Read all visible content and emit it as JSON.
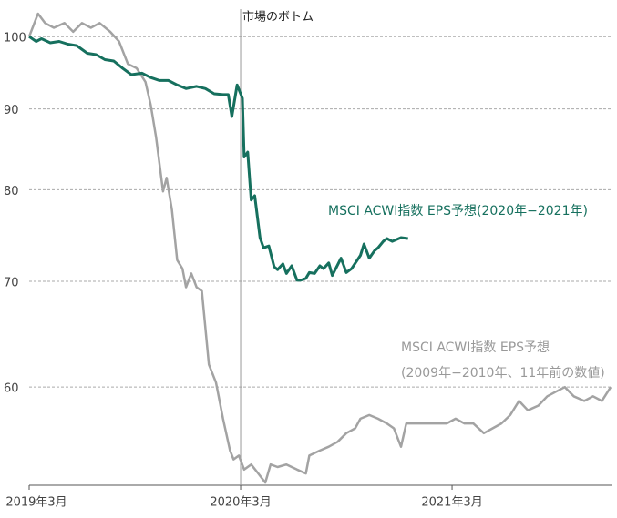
{
  "chart_data": {
    "type": "line",
    "log_y": true,
    "grid": true,
    "xlim": [
      0,
      33.1
    ],
    "xticks": [
      {
        "value": 0,
        "label": "2019年3月"
      },
      {
        "value": 12,
        "label": "2020年3月"
      },
      {
        "value": 24,
        "label": "2021年3月"
      }
    ],
    "ylim": [
      52,
      103.4
    ],
    "yticks": [
      100,
      90,
      80,
      70,
      60
    ],
    "annotation": {
      "x": 12,
      "label": "市場のボトム"
    },
    "series": [
      {
        "name": "MSCI ACWI指数 EPS予想",
        "note": "(2009年−2010年、11年前の数値)",
        "color": "#a3a3a3",
        "x": [
          0,
          0.5,
          0.9,
          1.4,
          2.0,
          2.5,
          3.0,
          3.5,
          4.0,
          4.6,
          5.1,
          5.6,
          6.1,
          6.6,
          6.9,
          7.2,
          7.6,
          7.8,
          8.1,
          8.4,
          8.7,
          8.9,
          9.2,
          9.5,
          9.8,
          10.2,
          10.6,
          11.0,
          11.4,
          11.6,
          11.9,
          12.2,
          12.6,
          13.0,
          13.4,
          13.7,
          14.1,
          14.6,
          15.2,
          15.7,
          15.9,
          16.5,
          17.0,
          17.5,
          18.0,
          18.5,
          18.8,
          19.3,
          19.8,
          20.3,
          20.7,
          21.1,
          21.4,
          21.9,
          22.4,
          23.2,
          23.7,
          24.2,
          24.7,
          25.2,
          25.8,
          26.3,
          26.8,
          27.3,
          27.8,
          28.3,
          28.9,
          29.4,
          29.9,
          30.4,
          30.9,
          31.5,
          32.0,
          32.5,
          33.0
        ],
        "values": [
          100,
          103.4,
          102.0,
          101.3,
          102.0,
          100.7,
          102.0,
          101.3,
          102.0,
          100.7,
          99.3,
          96.1,
          95.5,
          93.6,
          90.5,
          86.4,
          79.8,
          81.4,
          77.7,
          72.2,
          71.3,
          69.4,
          70.8,
          69.4,
          69.0,
          62.0,
          60.4,
          57.3,
          54.7,
          54.0,
          54.3,
          53.2,
          53.6,
          52.9,
          52.2,
          53.6,
          53.4,
          53.6,
          53.2,
          52.9,
          54.3,
          54.7,
          55.0,
          55.4,
          56.1,
          56.5,
          57.3,
          57.6,
          57.3,
          56.9,
          56.5,
          55.0,
          56.9,
          56.9,
          56.9,
          56.9,
          56.9,
          57.3,
          56.9,
          56.9,
          56.1,
          56.5,
          56.9,
          57.6,
          58.8,
          58.0,
          58.4,
          59.2,
          59.6,
          60.0,
          59.2,
          58.8,
          59.2,
          58.8,
          60.0
        ]
      },
      {
        "name": "MSCI ACWI指数 EPS予想(2020年−2021年)",
        "color": "#16705e",
        "x": [
          0,
          0.4,
          0.7,
          1.2,
          1.7,
          2.2,
          2.7,
          3.3,
          3.8,
          4.3,
          4.8,
          5.3,
          5.8,
          6.4,
          6.9,
          7.4,
          7.9,
          8.4,
          8.9,
          9.5,
          10.0,
          10.5,
          11.0,
          11.3,
          11.5,
          11.8,
          12.1,
          12.2,
          12.4,
          12.6,
          12.8,
          13.1,
          13.3,
          13.6,
          13.9,
          14.1,
          14.4,
          14.6,
          14.9,
          15.2,
          15.4,
          15.7,
          15.9,
          16.2,
          16.5,
          16.7,
          17.0,
          17.2,
          17.7,
          18.0,
          18.3,
          18.8,
          19.0,
          19.3,
          19.6,
          19.8,
          20.1,
          20.3,
          20.6,
          21.1,
          21.5
        ],
        "values": [
          100,
          99.3,
          99.7,
          99.1,
          99.3,
          98.9,
          98.7,
          97.6,
          97.4,
          96.7,
          96.5,
          95.5,
          94.6,
          94.8,
          94.2,
          93.8,
          93.8,
          93.2,
          92.7,
          93.0,
          92.7,
          92.0,
          91.9,
          91.9,
          89.0,
          93.2,
          91.4,
          83.9,
          84.5,
          78.8,
          79.3,
          74.6,
          73.5,
          73.7,
          71.5,
          71.2,
          71.8,
          70.8,
          71.6,
          70.1,
          70.1,
          70.3,
          70.9,
          70.8,
          71.6,
          71.3,
          71.9,
          70.6,
          72.4,
          70.9,
          71.3,
          72.7,
          73.9,
          72.4,
          73.2,
          73.5,
          74.2,
          74.5,
          74.2,
          74.6,
          74.5
        ]
      }
    ]
  }
}
